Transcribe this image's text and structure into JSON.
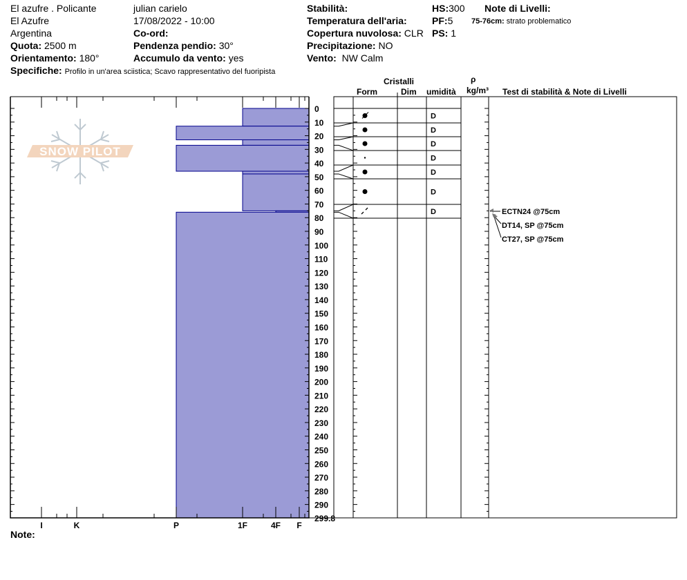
{
  "header": {
    "location": "El azufre . Policante",
    "area": "El Azufre",
    "country": "Argentina",
    "quota_label": "Quota:",
    "quota_value": "2500 m",
    "orient_label": "Orientamento:",
    "orient_value": "180°",
    "observer": "julian carielo",
    "datetime": "17/08/2022 - 10:00",
    "coord_label": "Co-ord:",
    "slope_label": "Pendenza pendio:",
    "slope_value": "30°",
    "wind_load_label": "Accumulo da vento:",
    "wind_load_value": "yes",
    "specifiche_label": "Specifiche:",
    "specifiche_value": "Profilo in un'area sciistica; Scavo rappresentativo del fuoripista",
    "stability_label": "Stabilità:",
    "air_temp_label": "Temperatura dell'aria:",
    "cloud_label": "Copertura nuvolosa:",
    "cloud_value": "CLR",
    "precip_label": "Precipitazione:",
    "precip_value": "NO",
    "wind_label": "Vento:",
    "wind_value": "NW Calm",
    "hs_label": "HS:",
    "hs_value": "300",
    "pf_label": "PF:",
    "pf_value": "5",
    "ps_label": "PS:",
    "ps_value": "1",
    "layer_notes_label": "Note di Livelli:",
    "layer_note_range": "75-76cm:",
    "layer_note_text": "strato problematico"
  },
  "columns": {
    "cristalli": "Cristalli",
    "form": "Form",
    "dim": "Dim",
    "umidita": "umidità",
    "rho": "ρ",
    "density_unit": "kg/m³",
    "tests": "Test di stabilità & Note di Livelli"
  },
  "note_label": "Note:",
  "logo_text": "SNOW PILOT",
  "chart_data": {
    "type": "bar",
    "orientation": "horizontal",
    "ylabel": "",
    "ylim": [
      0,
      299.8
    ],
    "y_ticks": [
      "0",
      "10",
      "20",
      "30",
      "40",
      "50",
      "60",
      "70",
      "80",
      "90",
      "100",
      "110",
      "120",
      "130",
      "140",
      "150",
      "160",
      "170",
      "180",
      "190",
      "200",
      "210",
      "220",
      "230",
      "240",
      "250",
      "260",
      "270",
      "280",
      "290",
      "299.8"
    ],
    "hardness_ticks": [
      "I",
      "K",
      "P",
      "1F",
      "4F",
      "F"
    ],
    "bar_color": "#9b9bd6",
    "bar_edge_color": "#00008b",
    "layers": [
      {
        "top": 0,
        "bottom": 13,
        "hardness": "1F"
      },
      {
        "top": 13,
        "bottom": 23,
        "hardness": "P"
      },
      {
        "top": 23,
        "bottom": 27,
        "hardness": "1F"
      },
      {
        "top": 27,
        "bottom": 46,
        "hardness": "P"
      },
      {
        "top": 46,
        "bottom": 48,
        "hardness": "1F"
      },
      {
        "top": 48,
        "bottom": 75,
        "hardness": "1F"
      },
      {
        "top": 75,
        "bottom": 76,
        "hardness": "4F"
      },
      {
        "top": 76,
        "bottom": 299.8,
        "hardness": "P"
      }
    ],
    "crystal_rows": [
      {
        "form": "decomposing-rounded",
        "moisture": "D"
      },
      {
        "form": "rounded",
        "moisture": "D"
      },
      {
        "form": "rounded",
        "moisture": "D"
      },
      {
        "form": "small-rounded",
        "moisture": "D"
      },
      {
        "form": "rounded",
        "moisture": "D"
      },
      {
        "form": "rounded",
        "moisture": "D"
      },
      {
        "form": "faceted-slash",
        "moisture": "D"
      }
    ],
    "tests": [
      "ECTN24 @75cm",
      "DT14, SP @75cm",
      "CT27, SP @75cm"
    ]
  }
}
